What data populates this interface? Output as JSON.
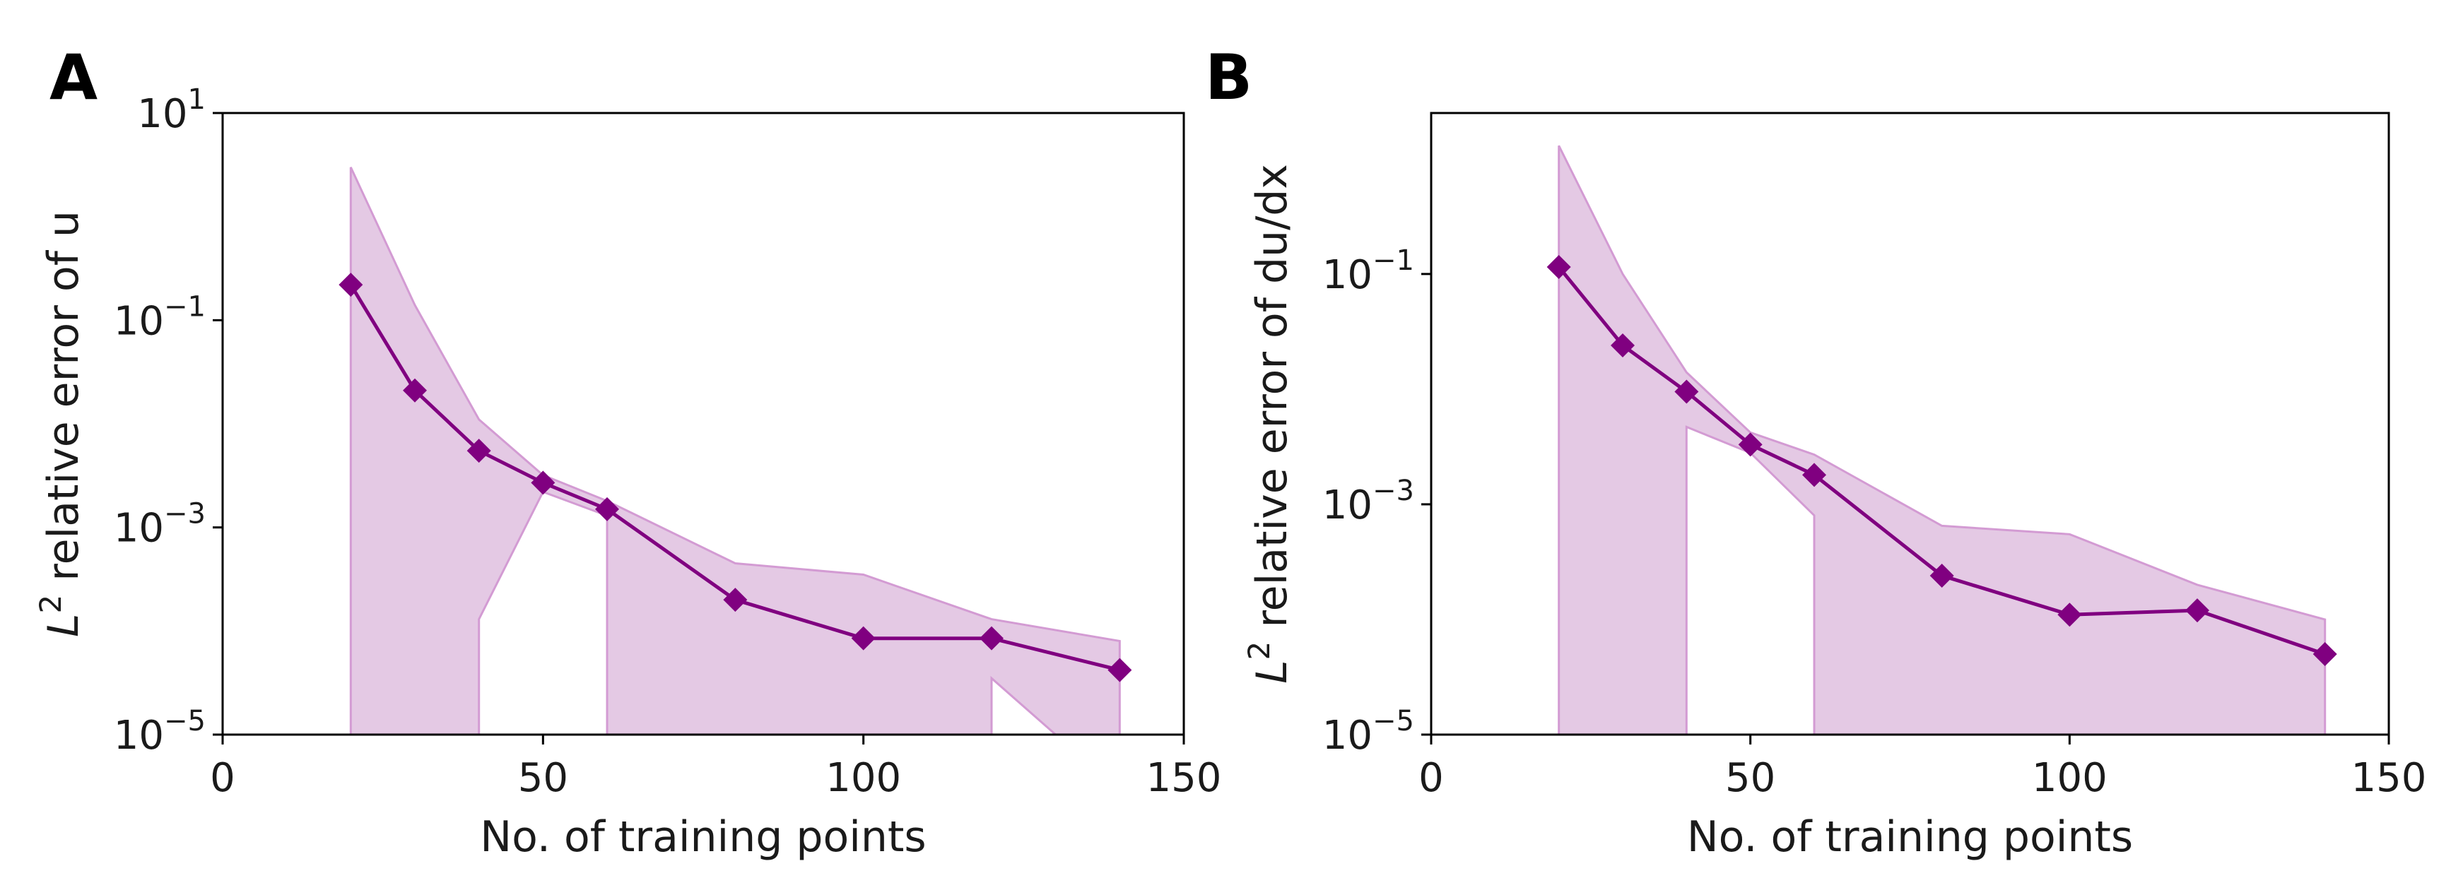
{
  "colors": {
    "line": "#800080",
    "band_fill": "#e4c9e4",
    "band_edge": "#d39bd3"
  },
  "chart_data": [
    {
      "panel_label": "A",
      "type": "line",
      "yscale": "log",
      "xlabel": "No. of training points",
      "ylabel_base": "L",
      "ylabel_sup": "2",
      "ylabel_rest": " relative error of u",
      "xlim": [
        0,
        150
      ],
      "ylim": [
        1e-05,
        10
      ],
      "xticks": [
        0,
        50,
        100,
        150
      ],
      "yticks": [
        {
          "value": 10,
          "base": "10",
          "exp": "1"
        },
        {
          "value": 0.1,
          "base": "10",
          "exp": "−1"
        },
        {
          "value": 0.001,
          "base": "10",
          "exp": "−3"
        },
        {
          "value": 1e-05,
          "base": "10",
          "exp": "−5"
        }
      ],
      "x": [
        20,
        30,
        40,
        50,
        60,
        80,
        100,
        120,
        140
      ],
      "y": [
        0.22,
        0.021,
        0.0055,
        0.0027,
        0.0015,
        0.0002,
        8.5e-05,
        8.5e-05,
        4.2e-05
      ],
      "band_upper": [
        3.0,
        0.14,
        0.011,
        0.0032,
        0.0018,
        0.00045,
        0.00035,
        0.00013,
        8e-05
      ],
      "band_lower": [
        [
          20,
          1e-05
        ],
        [
          40,
          1e-05
        ],
        [
          40,
          0.00013
        ],
        [
          50,
          0.0022
        ],
        [
          60,
          0.0013
        ],
        [
          60,
          1e-05
        ],
        [
          120,
          1e-05
        ],
        [
          120,
          3.5e-05
        ],
        [
          130,
          1e-05
        ],
        [
          140,
          1e-05
        ]
      ]
    },
    {
      "panel_label": "B",
      "type": "line",
      "yscale": "log",
      "xlabel": "No. of training points",
      "ylabel_base": "L",
      "ylabel_sup": "2",
      "ylabel_rest": " relative error of du/dx",
      "xlim": [
        0,
        150
      ],
      "ylim": [
        1e-05,
        2.5
      ],
      "xticks": [
        0,
        50,
        100,
        150
      ],
      "yticks": [
        {
          "value": 0.1,
          "base": "10",
          "exp": "−1"
        },
        {
          "value": 0.001,
          "base": "10",
          "exp": "−3"
        },
        {
          "value": 1e-05,
          "base": "10",
          "exp": "−5"
        }
      ],
      "x": [
        20,
        30,
        40,
        50,
        60,
        80,
        100,
        120,
        140
      ],
      "y": [
        0.115,
        0.024,
        0.0095,
        0.0033,
        0.0018,
        0.00024,
        0.00011,
        0.00012,
        5e-05
      ],
      "band_upper": [
        1.3,
        0.1,
        0.014,
        0.0042,
        0.0027,
        0.00065,
        0.00055,
        0.0002,
        0.0001
      ],
      "band_lower": [
        [
          20,
          1e-05
        ],
        [
          40,
          1e-05
        ],
        [
          40,
          0.0047
        ],
        [
          50,
          0.0028
        ],
        [
          60,
          0.0008
        ],
        [
          60,
          1e-05
        ],
        [
          120,
          1e-05
        ],
        [
          140,
          1e-05
        ]
      ]
    }
  ]
}
